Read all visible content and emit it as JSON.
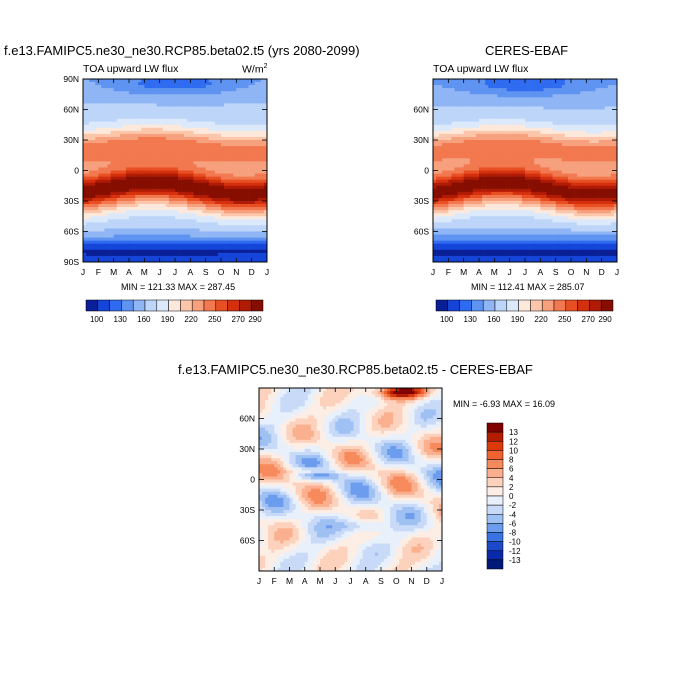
{
  "chart_data": [
    {
      "type": "heatmap",
      "title": "f.e13.FAMIPC5.ne30_ne30.RCP85.beta02.t5 (yrs 2080-2099)",
      "left_label": "TOA upward LW flux",
      "unit": "W/m",
      "unit_sup": "2",
      "x_ticks": [
        "J",
        "F",
        "M",
        "A",
        "M",
        "J",
        "J",
        "A",
        "S",
        "O",
        "N",
        "D",
        "J"
      ],
      "y_ticks": [
        "90N",
        "60N",
        "30N",
        "0",
        "30S",
        "60S",
        "90S"
      ],
      "min_max": "MIN = 121.33 MAX = 287.45",
      "colorbar_labels": [
        "100",
        "130",
        "160",
        "190",
        "220",
        "250",
        "270",
        "290"
      ],
      "latitude_range": [
        -90,
        90
      ]
    },
    {
      "type": "heatmap",
      "title": "CERES-EBAF",
      "left_label": "TOA upward LW flux",
      "x_ticks": [
        "J",
        "F",
        "M",
        "A",
        "M",
        "J",
        "J",
        "A",
        "S",
        "O",
        "N",
        "D",
        "J"
      ],
      "y_ticks": [
        "60N",
        "30N",
        "0",
        "30S",
        "60S"
      ],
      "min_max": "MIN = 112.41 MAX = 285.07",
      "colorbar_labels": [
        "100",
        "130",
        "160",
        "190",
        "220",
        "250",
        "270",
        "290"
      ],
      "latitude_range": [
        -90,
        90
      ]
    },
    {
      "type": "heatmap",
      "title": "f.e13.FAMIPC5.ne30_ne30.RCP85.beta02.t5 - CERES-EBAF",
      "x_ticks": [
        "J",
        "F",
        "M",
        "A",
        "M",
        "J",
        "J",
        "A",
        "S",
        "O",
        "N",
        "D",
        "J"
      ],
      "y_ticks": [
        "60N",
        "30N",
        "0",
        "30S",
        "60S"
      ],
      "min_max": "MIN = -6.93 MAX = 16.09",
      "colorbar_labels": [
        "13",
        "12",
        "10",
        "8",
        "6",
        "4",
        "2",
        "0",
        "-2",
        "-4",
        "-6",
        "-8",
        "-10",
        "-12",
        "-13"
      ],
      "latitude_range": [
        -90,
        90
      ]
    }
  ],
  "colors": {
    "abs_palette": [
      "#0a1e96",
      "#1545d8",
      "#2e6bf0",
      "#5e93f2",
      "#8fb5f5",
      "#bcd5f8",
      "#dce9fb",
      "#fde8dc",
      "#fbc6aa",
      "#f7a07e",
      "#f2784f",
      "#e84f22",
      "#d4300e",
      "#b01b05",
      "#860e00"
    ],
    "diff_palette": [
      "#800000",
      "#b21d00",
      "#dc3a0b",
      "#f06231",
      "#f78a5c",
      "#fab08e",
      "#fcd2bd",
      "#fdeee5",
      "#e8f0fb",
      "#c8daf7",
      "#9fc0f3",
      "#6c9ced",
      "#3b72e3",
      "#1c48cc",
      "#0a28a8",
      "#001a7a"
    ]
  }
}
